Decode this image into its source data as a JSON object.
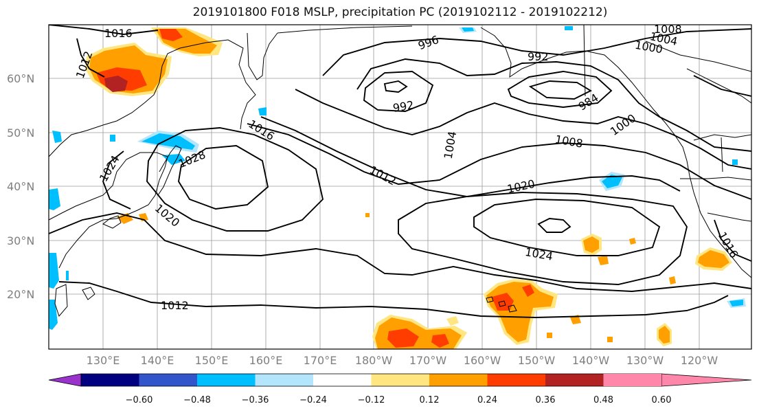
{
  "title": "2019101800 F018 MSLP, precipitation PC (2019102112 - 2019102212)",
  "lat_labels": [
    "60°N",
    "50°N",
    "40°N",
    "30°N",
    "20°N"
  ],
  "lon_labels": [
    "130°E",
    "140°E",
    "150°E",
    "160°E",
    "170°E",
    "180°W",
    "170°W",
    "160°W",
    "150°W",
    "140°W",
    "130°W",
    "120°W"
  ],
  "isobar_labels": [
    "1016",
    "1012",
    "996",
    "1004",
    "1008",
    "1000",
    "992",
    "992",
    "984",
    "1000",
    "1016",
    "1028",
    "1024",
    "1004",
    "1008",
    "1012",
    "1020",
    "1020",
    "1024",
    "1012",
    "1016"
  ],
  "colorbar": {
    "tick_labels": [
      "−0.60",
      "−0.48",
      "−0.36",
      "−0.24",
      "−0.12",
      "0.12",
      "0.24",
      "0.36",
      "0.48",
      "0.60"
    ],
    "colors": [
      "#9933cc",
      "#000080",
      "#3355cc",
      "#00bfff",
      "#b3e5fc",
      "#ffffff",
      "#ffe680",
      "#ffa000",
      "#ff3d00",
      "#b22222",
      "#ff88aa"
    ]
  },
  "precip_colors": {
    "light_yellow": "#ffe680",
    "orange": "#ffa000",
    "red_orange": "#ff3d00",
    "dark_red": "#b22222",
    "sky_blue": "#00bfff",
    "light_blue": "#b3e5fc"
  }
}
